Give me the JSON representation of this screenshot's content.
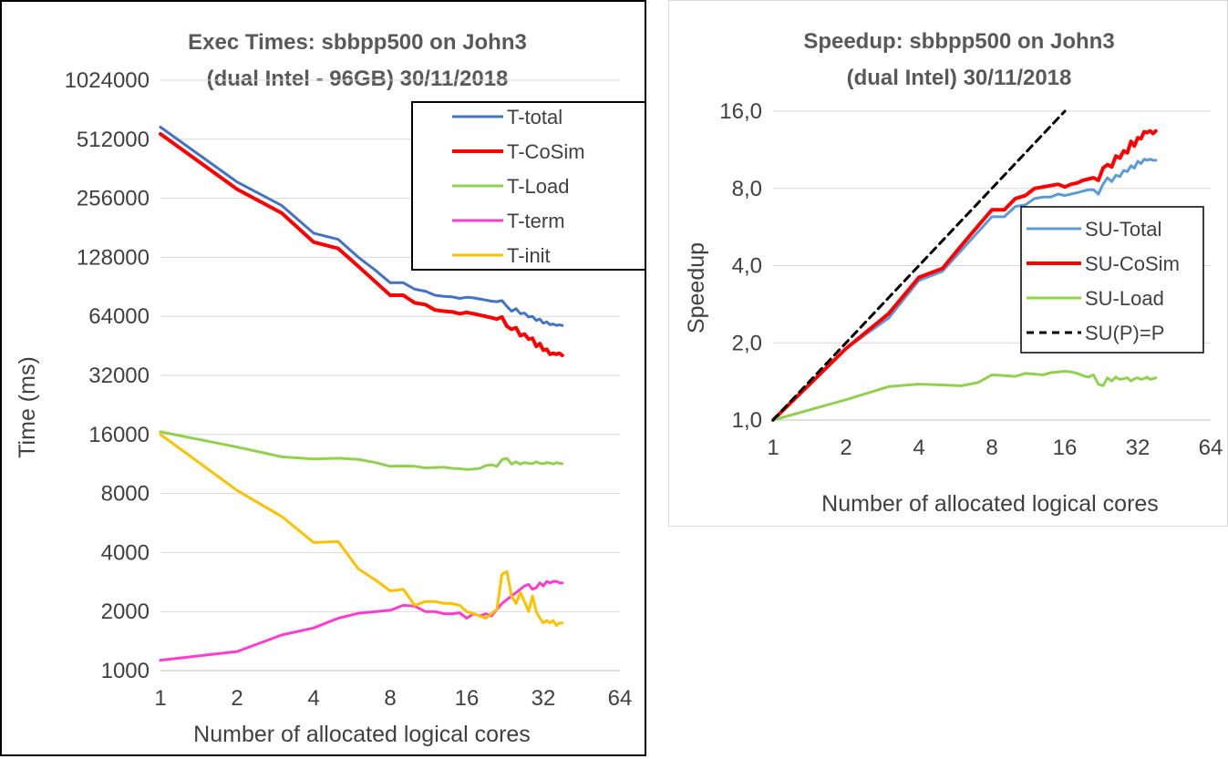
{
  "left_chart": {
    "title_line1": "Exec Times: sbbpp500 on John3",
    "title_line2": "(dual Intel - 96GB)  30/11/2018",
    "xlabel": "Number of allocated logical cores",
    "ylabel": "Time (ms)"
  },
  "right_chart": {
    "title_line1": "Speedup: sbbpp500 on John3",
    "title_line2": "(dual Intel)  30/11/2018",
    "xlabel": "Number of allocated logical cores",
    "ylabel": "Speedup"
  },
  "chart_data": [
    {
      "type": "line",
      "title": "Exec Times: sbbpp500 on John3 (dual Intel - 96GB)  30/11/2018",
      "xlabel": "Number of allocated logical cores",
      "ylabel": "Time (ms)",
      "x_scale": "log2",
      "y_scale": "log2",
      "xlim": [
        1,
        64
      ],
      "ylim": [
        1000,
        1024000
      ],
      "x_ticks": [
        "1",
        "2",
        "4",
        "8",
        "16",
        "32",
        "64"
      ],
      "y_ticks": [
        "1000",
        "2000",
        "4000",
        "8000",
        "16000",
        "32000",
        "64000",
        "128000",
        "256000",
        "512000",
        "1024000"
      ],
      "grid": "horizontal",
      "legend": "top-right",
      "series": [
        {
          "name": "T-total",
          "color": "#4472c4",
          "width": 3,
          "x": [
            1,
            2,
            3,
            4,
            5,
            6,
            7,
            8,
            9,
            10,
            11,
            12,
            13,
            14,
            15,
            16,
            17,
            18,
            19,
            20,
            21,
            22,
            23,
            24,
            25,
            26,
            27,
            28,
            29,
            30,
            31,
            32,
            33,
            34,
            35,
            36,
            37,
            38
          ],
          "y": [
            590000,
            310000,
            235000,
            170000,
            158000,
            128000,
            110000,
            95000,
            95000,
            88000,
            86000,
            82000,
            81000,
            80500,
            79000,
            80000,
            79500,
            78500,
            77500,
            76500,
            76000,
            77000,
            72000,
            68000,
            70000,
            66000,
            66500,
            63500,
            64000,
            61000,
            62000,
            59000,
            60000,
            58000,
            58500,
            57500,
            58000,
            57500
          ]
        },
        {
          "name": "T-CoSim",
          "color": "#ff0000",
          "width": 4,
          "x": [
            1,
            2,
            3,
            4,
            5,
            6,
            7,
            8,
            9,
            10,
            11,
            12,
            13,
            14,
            15,
            16,
            17,
            18,
            19,
            20,
            21,
            22,
            23,
            24,
            25,
            26,
            27,
            28,
            29,
            30,
            31,
            32,
            33,
            34,
            35,
            36,
            37,
            38
          ],
          "y": [
            545000,
            285000,
            215000,
            153000,
            142000,
            115000,
            96000,
            82000,
            82000,
            75000,
            73500,
            69000,
            68000,
            67500,
            66000,
            67000,
            66000,
            65000,
            64000,
            63000,
            62000,
            63500,
            57000,
            55000,
            56000,
            51000,
            52000,
            49000,
            49500,
            45000,
            46500,
            43000,
            43500,
            41000,
            41500,
            41000,
            41500,
            40500
          ]
        },
        {
          "name": "T-Load",
          "color": "#92d050",
          "width": 3,
          "x": [
            1,
            2,
            3,
            4,
            5,
            6,
            7,
            8,
            9,
            10,
            11,
            12,
            13,
            14,
            15,
            16,
            17,
            18,
            19,
            20,
            21,
            22,
            23,
            24,
            25,
            26,
            27,
            28,
            29,
            30,
            31,
            32,
            33,
            34,
            35,
            36,
            37,
            38
          ],
          "y": [
            16500,
            13800,
            12300,
            12000,
            12100,
            11950,
            11500,
            11000,
            11050,
            11000,
            10800,
            10850,
            10900,
            10750,
            10700,
            10600,
            10650,
            10750,
            11100,
            11200,
            11000,
            11900,
            12100,
            11300,
            11600,
            11300,
            11500,
            11400,
            11350,
            11600,
            11400,
            11350,
            11500,
            11450,
            11300,
            11500,
            11400,
            11350
          ]
        },
        {
          "name": "T-term",
          "color": "#ff3bd0",
          "width": 3,
          "x": [
            1,
            2,
            3,
            4,
            5,
            6,
            7,
            8,
            9,
            10,
            11,
            12,
            13,
            14,
            15,
            16,
            17,
            18,
            19,
            20,
            21,
            22,
            23,
            24,
            25,
            26,
            27,
            28,
            29,
            30,
            31,
            32,
            33,
            34,
            35,
            36,
            37,
            38
          ],
          "y": [
            1130,
            1250,
            1520,
            1650,
            1850,
            1960,
            2000,
            2030,
            2150,
            2130,
            2000,
            2000,
            1950,
            1950,
            1970,
            1850,
            1950,
            1900,
            1950,
            1900,
            2050,
            2200,
            2300,
            2400,
            2500,
            2600,
            2700,
            2750,
            2600,
            2650,
            2800,
            2700,
            2850,
            2800,
            2850,
            2850,
            2800,
            2800
          ]
        },
        {
          "name": "T-init",
          "color": "#ffc000",
          "width": 3,
          "x": [
            1,
            2,
            3,
            4,
            5,
            6,
            7,
            8,
            9,
            10,
            11,
            12,
            13,
            14,
            15,
            16,
            17,
            18,
            19,
            20,
            21,
            22,
            23,
            24,
            25,
            26,
            27,
            28,
            29,
            30,
            31,
            32,
            33,
            34,
            35,
            36,
            37,
            38
          ],
          "y": [
            16000,
            8300,
            6100,
            4500,
            4550,
            3300,
            2900,
            2550,
            2600,
            2150,
            2250,
            2250,
            2200,
            2200,
            2150,
            2000,
            1950,
            1900,
            1850,
            1950,
            2050,
            3100,
            3200,
            2400,
            2200,
            2500,
            2250,
            2000,
            2400,
            2000,
            1850,
            1750,
            1800,
            1750,
            1800,
            1700,
            1750,
            1750
          ]
        }
      ]
    },
    {
      "type": "line",
      "title": "Speedup: sbbpp500 on John3 (dual Intel)  30/11/2018",
      "xlabel": "Number of allocated logical cores",
      "ylabel": "Speedup",
      "x_scale": "log2",
      "y_scale": "log2",
      "xlim": [
        1,
        64
      ],
      "ylim": [
        1,
        16
      ],
      "x_ticks": [
        "1",
        "2",
        "4",
        "8",
        "16",
        "32",
        "64"
      ],
      "y_ticks": [
        "1,0",
        "2,0",
        "4,0",
        "8,0",
        "16,0"
      ],
      "grid": "horizontal",
      "legend": "right",
      "series": [
        {
          "name": "SU-Total",
          "color": "#5b9bd5",
          "width": 3,
          "x": [
            1,
            2,
            3,
            4,
            5,
            6,
            7,
            8,
            9,
            10,
            11,
            12,
            13,
            14,
            15,
            16,
            17,
            18,
            19,
            20,
            21,
            22,
            23,
            24,
            25,
            26,
            27,
            28,
            29,
            30,
            31,
            32,
            33,
            34,
            35,
            36,
            37,
            38
          ],
          "y": [
            1.0,
            1.9,
            2.5,
            3.5,
            3.8,
            4.6,
            5.4,
            6.2,
            6.2,
            6.8,
            6.9,
            7.3,
            7.4,
            7.4,
            7.6,
            7.5,
            7.6,
            7.7,
            7.8,
            7.9,
            7.9,
            7.6,
            8.3,
            8.8,
            8.5,
            9.0,
            8.9,
            9.4,
            9.3,
            9.8,
            9.6,
            10.2,
            10.0,
            10.4,
            10.3,
            10.4,
            10.3,
            10.3
          ]
        },
        {
          "name": "SU-CoSim",
          "color": "#ff0000",
          "width": 4,
          "x": [
            1,
            2,
            3,
            4,
            5,
            6,
            7,
            8,
            9,
            10,
            11,
            12,
            13,
            14,
            15,
            16,
            17,
            18,
            19,
            20,
            21,
            22,
            23,
            24,
            25,
            26,
            27,
            28,
            29,
            30,
            31,
            32,
            33,
            34,
            35,
            36,
            37,
            38
          ],
          "y": [
            1.0,
            1.9,
            2.6,
            3.6,
            3.9,
            4.8,
            5.7,
            6.6,
            6.6,
            7.3,
            7.5,
            8.0,
            8.1,
            8.2,
            8.3,
            8.1,
            8.3,
            8.4,
            8.6,
            8.7,
            8.8,
            8.6,
            9.6,
            9.9,
            9.7,
            10.7,
            10.5,
            11.2,
            11.0,
            12.2,
            11.7,
            12.6,
            12.5,
            13.3,
            13.2,
            13.4,
            13.1,
            13.4
          ]
        },
        {
          "name": "SU-Load",
          "color": "#92d050",
          "width": 3,
          "x": [
            1,
            2,
            3,
            4,
            5,
            6,
            7,
            8,
            9,
            10,
            11,
            12,
            13,
            14,
            15,
            16,
            17,
            18,
            19,
            20,
            21,
            22,
            23,
            24,
            25,
            26,
            27,
            28,
            29,
            30,
            31,
            32,
            33,
            34,
            35,
            36,
            37,
            38
          ],
          "y": [
            1.0,
            1.2,
            1.35,
            1.38,
            1.37,
            1.36,
            1.4,
            1.5,
            1.49,
            1.48,
            1.52,
            1.51,
            1.5,
            1.53,
            1.54,
            1.55,
            1.54,
            1.52,
            1.49,
            1.47,
            1.5,
            1.38,
            1.36,
            1.46,
            1.42,
            1.47,
            1.44,
            1.45,
            1.46,
            1.42,
            1.45,
            1.46,
            1.44,
            1.45,
            1.47,
            1.44,
            1.45,
            1.46
          ]
        },
        {
          "name": "SU(P)=P",
          "color": "#000000",
          "width": 3,
          "dashed": true,
          "x": [
            1,
            16
          ],
          "y": [
            1,
            16
          ]
        }
      ]
    }
  ]
}
